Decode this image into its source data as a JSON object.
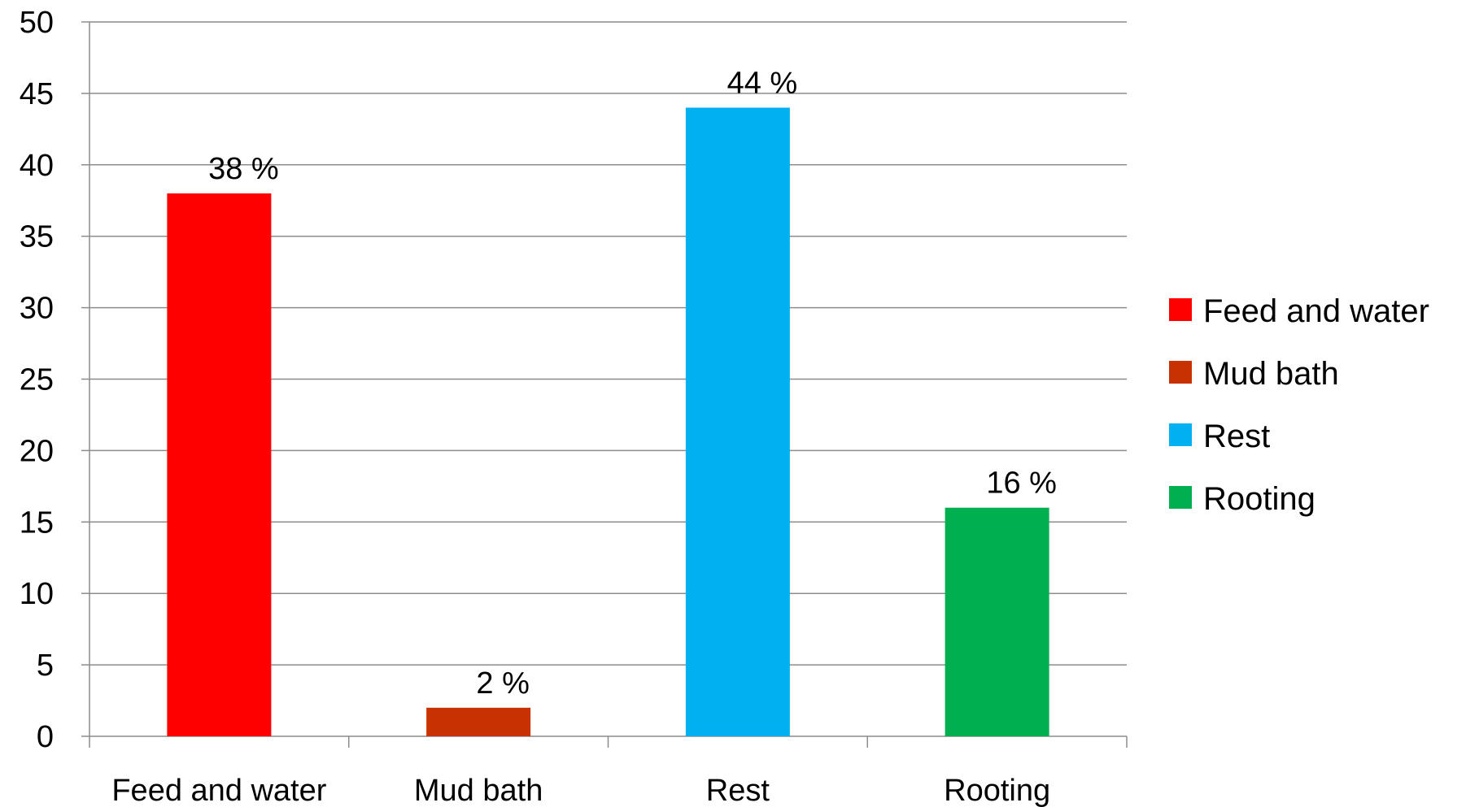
{
  "chart_data": {
    "type": "bar",
    "categories": [
      "Feed and water",
      "Mud bath",
      "Rest",
      "Rooting"
    ],
    "values": [
      38,
      2,
      44,
      16
    ],
    "data_labels": [
      "38 %",
      "2 %",
      "44 %",
      "16 %"
    ],
    "colors": [
      "#ff0000",
      "#c83200",
      "#00b0f0",
      "#00b050"
    ],
    "title": "",
    "xlabel": "",
    "ylabel": "",
    "ylim": [
      0,
      50
    ],
    "yticks": [
      0,
      5,
      10,
      15,
      20,
      25,
      30,
      35,
      40,
      45,
      50
    ],
    "grid": true,
    "legend": {
      "placement": "right",
      "entries": [
        "Feed and water",
        "Mud bath",
        "Rest",
        "Rooting"
      ]
    }
  }
}
